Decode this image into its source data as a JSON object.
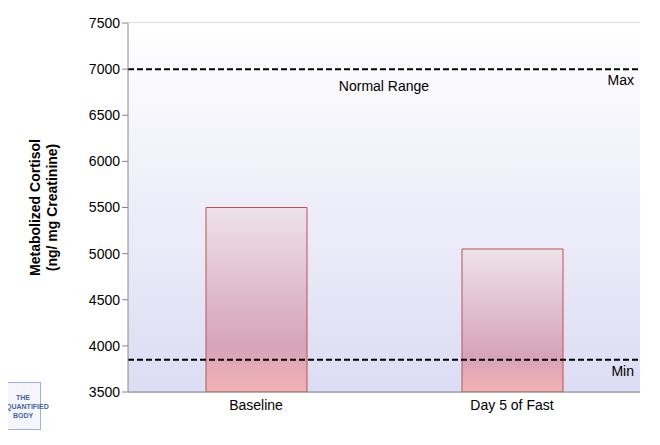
{
  "chart_data": {
    "type": "bar",
    "ylabel": [
      "Metabolized Cortisol",
      "(ng/ mg Creatinine)"
    ],
    "categories": [
      "Baseline",
      "Day 5 of Fast"
    ],
    "values": [
      5500,
      5050
    ],
    "color": "#c0504d",
    "ylim": [
      3500,
      7500
    ],
    "yticks": [
      3500,
      4000,
      4500,
      5000,
      5500,
      6000,
      6500,
      7000,
      7500
    ],
    "grid": true,
    "reference_lines": [
      {
        "label": "Max",
        "value": 7000
      },
      {
        "label": "Min",
        "value": 3850
      }
    ],
    "annotations": [
      {
        "text": "Normal Range"
      },
      {
        "text": "THE QUANTIFIED BODY"
      }
    ]
  }
}
